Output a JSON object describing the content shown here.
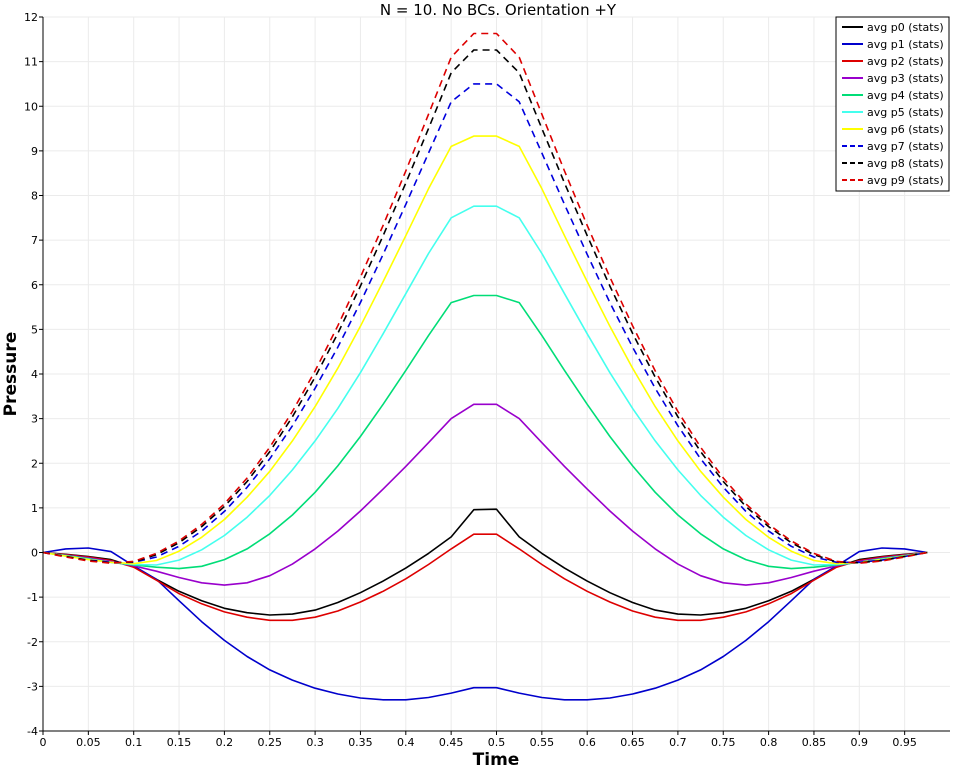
{
  "chart_data": {
    "type": "line",
    "title": "N = 10. No BCs. Orientation +Y",
    "xlabel": "Time",
    "ylabel": "Pressure",
    "xlim": [
      0,
      1
    ],
    "ylim": [
      -4,
      12
    ],
    "xticks": [
      0,
      0.05,
      0.1,
      0.15,
      0.2,
      0.25,
      0.3,
      0.35,
      0.4,
      0.45,
      0.5,
      0.55,
      0.6,
      0.65,
      0.7,
      0.75,
      0.8,
      0.85,
      0.9,
      0.95
    ],
    "xtick_labels": [
      "0",
      "0.05",
      "0.1",
      "0.15",
      "0.2",
      "0.25",
      "0.3",
      "0.35",
      "0.4",
      "0.45",
      "0.5",
      "0.55",
      "0.6",
      "0.65",
      "0.7",
      "0.75",
      "0.8",
      "0.85",
      "0.9",
      "0.95"
    ],
    "yticks": [
      -4,
      -3,
      -2,
      -1,
      0,
      1,
      2,
      3,
      4,
      5,
      6,
      7,
      8,
      9,
      10,
      11,
      12
    ],
    "ytick_labels": [
      "-4",
      "-3",
      "-2",
      "-1",
      "0",
      "1",
      "2",
      "3",
      "4",
      "5",
      "6",
      "7",
      "8",
      "9",
      "10",
      "11",
      "12"
    ],
    "grid": true,
    "legend_position": "top-right",
    "x": [
      0,
      0.025,
      0.05,
      0.075,
      0.1,
      0.125,
      0.15,
      0.175,
      0.2,
      0.225,
      0.25,
      0.275,
      0.3,
      0.325,
      0.35,
      0.375,
      0.4,
      0.425,
      0.45,
      0.475,
      0.5,
      0.525,
      0.55,
      0.575,
      0.6,
      0.625,
      0.65,
      0.675,
      0.7,
      0.725,
      0.75,
      0.775,
      0.8,
      0.825,
      0.85,
      0.875,
      0.9,
      0.925,
      0.95,
      0.975
    ],
    "series": [
      {
        "name": "avg p0 (stats)",
        "color": "#000000",
        "dash": false,
        "values": [
          0,
          -0.04,
          -0.09,
          -0.16,
          -0.32,
          -0.6,
          -0.87,
          -1.08,
          -1.25,
          -1.35,
          -1.4,
          -1.38,
          -1.29,
          -1.12,
          -0.9,
          -0.64,
          -0.35,
          -0.02,
          0.35,
          0.96,
          0.97,
          0.35,
          -0.02,
          -0.35,
          -0.64,
          -0.9,
          -1.12,
          -1.29,
          -1.38,
          -1.4,
          -1.35,
          -1.25,
          -1.08,
          -0.87,
          -0.6,
          -0.32,
          -0.16,
          -0.09,
          -0.04,
          0
        ]
      },
      {
        "name": "avg p1 (stats)",
        "color": "#0000cc",
        "dash": false,
        "values": [
          0,
          0.08,
          0.1,
          0.02,
          -0.3,
          -0.6,
          -1.08,
          -1.55,
          -1.97,
          -2.33,
          -2.63,
          -2.86,
          -3.04,
          -3.17,
          -3.26,
          -3.3,
          -3.3,
          -3.25,
          -3.15,
          -3.03,
          -3.03,
          -3.15,
          -3.25,
          -3.3,
          -3.3,
          -3.26,
          -3.17,
          -3.04,
          -2.86,
          -2.63,
          -2.33,
          -1.97,
          -1.55,
          -1.08,
          -0.6,
          -0.3,
          0.02,
          0.1,
          0.08,
          0
        ]
      },
      {
        "name": "avg p2 (stats)",
        "color": "#dd0000",
        "dash": false,
        "values": [
          0,
          -0.05,
          -0.1,
          -0.18,
          -0.33,
          -0.62,
          -0.92,
          -1.15,
          -1.33,
          -1.45,
          -1.52,
          -1.52,
          -1.45,
          -1.31,
          -1.11,
          -0.87,
          -0.59,
          -0.27,
          0.08,
          0.41,
          0.41,
          0.08,
          -0.27,
          -0.59,
          -0.87,
          -1.11,
          -1.31,
          -1.45,
          -1.52,
          -1.52,
          -1.45,
          -1.33,
          -1.15,
          -0.92,
          -0.62,
          -0.33,
          -0.18,
          -0.1,
          -0.05,
          0
        ]
      },
      {
        "name": "avg p3 (stats)",
        "color": "#9900cc",
        "dash": false,
        "values": [
          0,
          -0.06,
          -0.12,
          -0.2,
          -0.3,
          -0.42,
          -0.56,
          -0.68,
          -0.73,
          -0.68,
          -0.52,
          -0.26,
          0.08,
          0.48,
          0.93,
          1.42,
          1.93,
          2.46,
          3.0,
          3.32,
          3.32,
          3.0,
          2.46,
          1.93,
          1.42,
          0.93,
          0.48,
          0.08,
          -0.26,
          -0.52,
          -0.68,
          -0.73,
          -0.68,
          -0.56,
          -0.42,
          -0.3,
          -0.2,
          -0.12,
          -0.06,
          0
        ]
      },
      {
        "name": "avg p4 (stats)",
        "color": "#00dd77",
        "dash": false,
        "values": [
          0,
          -0.07,
          -0.14,
          -0.22,
          -0.28,
          -0.33,
          -0.36,
          -0.31,
          -0.16,
          0.08,
          0.42,
          0.84,
          1.35,
          1.94,
          2.6,
          3.32,
          4.08,
          4.86,
          5.6,
          5.76,
          5.76,
          5.6,
          4.86,
          4.08,
          3.32,
          2.6,
          1.94,
          1.35,
          0.84,
          0.42,
          0.08,
          -0.16,
          -0.31,
          -0.36,
          -0.33,
          -0.28,
          -0.22,
          -0.14,
          -0.07,
          0
        ]
      },
      {
        "name": "avg p5 (stats)",
        "color": "#44ffee",
        "dash": false,
        "values": [
          0,
          -0.08,
          -0.15,
          -0.22,
          -0.27,
          -0.28,
          -0.17,
          0.06,
          0.38,
          0.79,
          1.28,
          1.85,
          2.5,
          3.23,
          4.03,
          4.9,
          5.8,
          6.7,
          7.5,
          7.76,
          7.76,
          7.5,
          6.7,
          5.8,
          4.9,
          4.03,
          3.23,
          2.5,
          1.85,
          1.28,
          0.79,
          0.38,
          0.06,
          -0.17,
          -0.28,
          -0.27,
          -0.22,
          -0.15,
          -0.08,
          0
        ]
      },
      {
        "name": "avg p6 (stats)",
        "color": "#ffff00",
        "dash": false,
        "values": [
          0,
          -0.08,
          -0.16,
          -0.22,
          -0.25,
          -0.18,
          0.03,
          0.34,
          0.74,
          1.24,
          1.82,
          2.5,
          3.27,
          4.13,
          5.07,
          6.07,
          7.1,
          8.15,
          9.1,
          9.33,
          9.33,
          9.1,
          8.15,
          7.1,
          6.07,
          5.07,
          4.13,
          3.27,
          2.5,
          1.82,
          1.24,
          0.74,
          0.34,
          0.03,
          -0.18,
          -0.25,
          -0.22,
          -0.16,
          -0.08,
          0
        ]
      },
      {
        "name": "avg p7 (stats)",
        "color": "#0000dd",
        "dash": true,
        "values": [
          0,
          -0.09,
          -0.17,
          -0.22,
          -0.22,
          -0.1,
          0.14,
          0.48,
          0.92,
          1.46,
          2.1,
          2.84,
          3.68,
          4.6,
          5.6,
          6.68,
          7.8,
          8.95,
          10.1,
          10.5,
          10.5,
          10.1,
          8.95,
          7.8,
          6.68,
          5.6,
          4.6,
          3.68,
          2.84,
          2.1,
          1.46,
          0.92,
          0.48,
          0.14,
          -0.1,
          -0.22,
          -0.22,
          -0.17,
          -0.09,
          0
        ]
      },
      {
        "name": "avg p8 (stats)",
        "color": "#000000",
        "dash": true,
        "values": [
          0,
          -0.09,
          -0.18,
          -0.23,
          -0.21,
          -0.05,
          0.22,
          0.58,
          1.03,
          1.59,
          2.26,
          3.04,
          3.93,
          4.91,
          5.97,
          7.1,
          8.28,
          9.5,
          10.75,
          11.26,
          11.26,
          10.75,
          9.5,
          8.28,
          7.1,
          5.97,
          4.91,
          3.93,
          3.04,
          2.26,
          1.59,
          1.03,
          0.58,
          0.22,
          -0.05,
          -0.21,
          -0.23,
          -0.18,
          -0.09,
          0
        ]
      },
      {
        "name": "avg p9 (stats)",
        "color": "#dd0000",
        "dash": true,
        "values": [
          0,
          -0.1,
          -0.19,
          -0.24,
          -0.2,
          -0.02,
          0.26,
          0.63,
          1.09,
          1.67,
          2.36,
          3.16,
          4.07,
          5.08,
          6.17,
          7.33,
          8.55,
          9.82,
          11.1,
          11.63,
          11.63,
          11.1,
          9.82,
          8.55,
          7.33,
          6.17,
          5.08,
          4.07,
          3.16,
          2.36,
          1.67,
          1.09,
          0.63,
          0.26,
          -0.02,
          -0.2,
          -0.24,
          -0.19,
          -0.1,
          0
        ]
      }
    ]
  }
}
